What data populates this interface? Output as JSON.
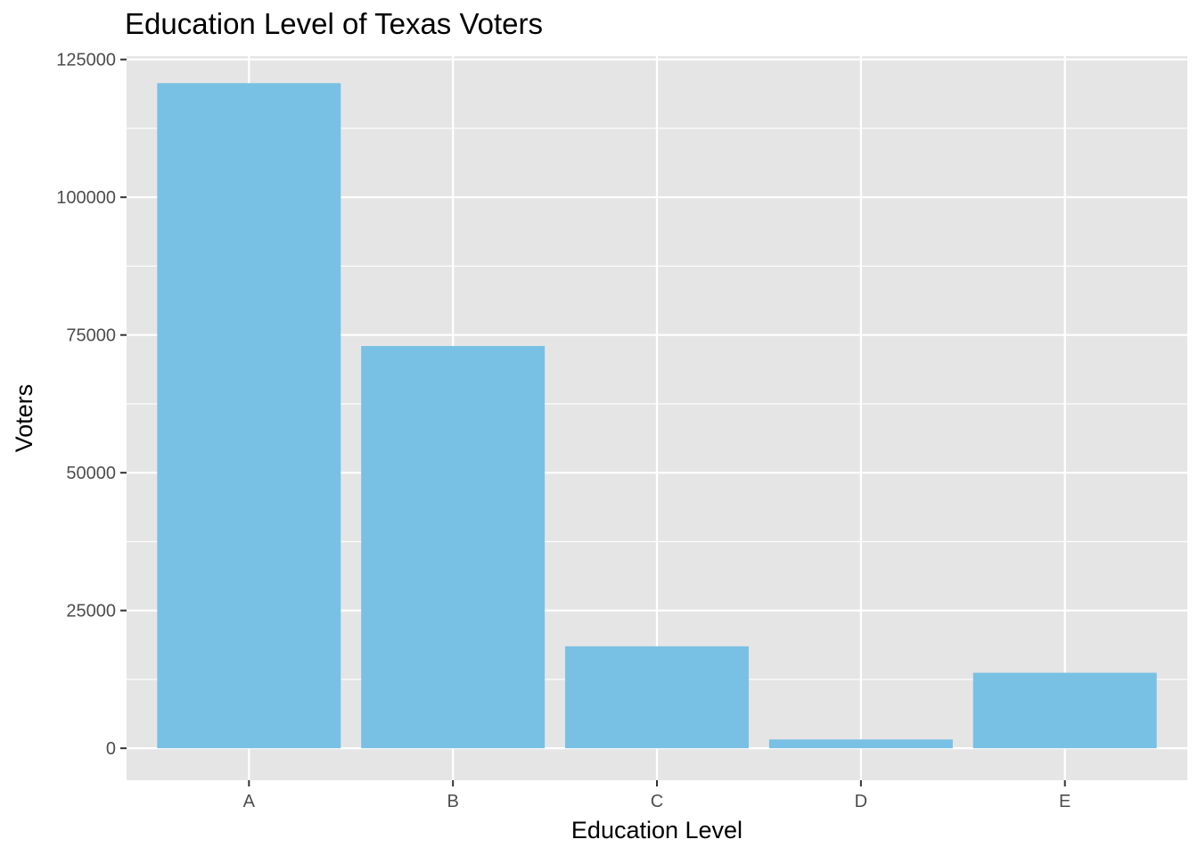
{
  "chart_data": {
    "type": "bar",
    "title": "Education Level of Texas Voters",
    "xlabel": "Education Level",
    "ylabel": "Voters",
    "categories": [
      "A",
      "B",
      "C",
      "D",
      "E"
    ],
    "values": [
      120700,
      73000,
      18500,
      1600,
      13700
    ],
    "ylim": [
      -5800,
      125600
    ],
    "yticks": [
      0,
      25000,
      50000,
      75000,
      100000,
      125000
    ],
    "ytick_labels": [
      "0",
      "25000",
      "50000",
      "75000",
      "100000",
      "125000"
    ],
    "grid": true,
    "legend": "none",
    "colors": {
      "bar": "#78c1e4",
      "panel": "#e5e5e5",
      "grid": "#ffffff",
      "tick_text": "#4d4d4d",
      "tick_mark": "#333333"
    }
  }
}
